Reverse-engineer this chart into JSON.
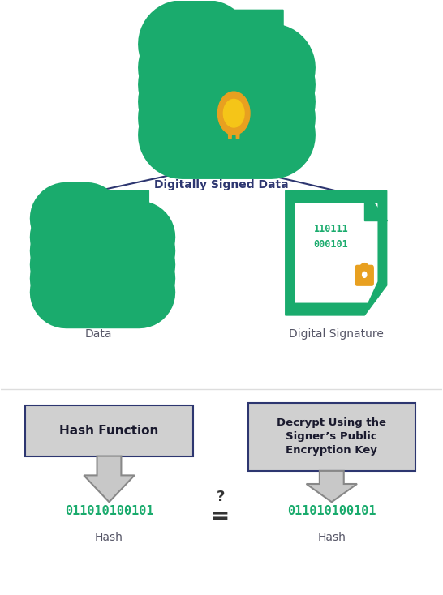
{
  "bg_color": "#ffffff",
  "green": "#1aab6d",
  "gold": "#e8a020",
  "gold_light": "#f5c518",
  "dark_navy": "#2d3670",
  "gray_box": "#cccccc",
  "gray_arrow": "#c8c8c8",
  "gray_arrow_border": "#888888",
  "hash_color": "#1aab6d",
  "text_dark": "#2d3670",
  "text_gray": "#555566",
  "title_top": "Digitally Signed Data",
  "label_left": "Data",
  "label_right": "Digital Signature",
  "box_left_text": "Hash Function",
  "box_right_text": "Decrypt Using the\nSigner’s Public\nEncryption Key",
  "hash_text": "011010100101",
  "hash_label": "Hash",
  "figsize": [
    5.46,
    7.34
  ],
  "dpi": 100
}
